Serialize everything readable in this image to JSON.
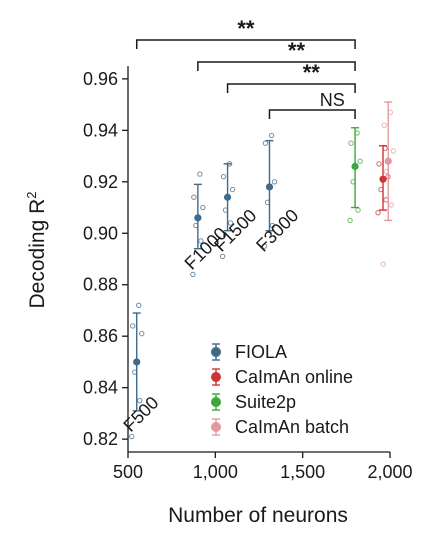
{
  "chart_data": {
    "type": "scatter",
    "xlabel": "Number of neurons",
    "ylabel": "Decoding R",
    "ylabel_superscript": "2",
    "xlim": [
      500,
      2000
    ],
    "ylim": [
      0.815,
      0.965
    ],
    "x_ticks": [
      500,
      1000,
      1500,
      2000
    ],
    "x_tick_labels": [
      "500",
      "1,000",
      "1,500",
      "2,000"
    ],
    "y_ticks": [
      0.82,
      0.84,
      0.86,
      0.88,
      0.9,
      0.92,
      0.94,
      0.96
    ],
    "y_tick_labels": [
      "0.82",
      "0.84",
      "0.86",
      "0.88",
      "0.90",
      "0.92",
      "0.94",
      "0.96"
    ],
    "grid": false,
    "legend_position": "bottom-right",
    "series": [
      {
        "name": "FIOLA",
        "color": "#3f6a8a",
        "points": [
          {
            "label": "F500",
            "x": 550,
            "mean": 0.85,
            "err_low": 0.831,
            "err_high": 0.869,
            "samples": [
              0.821,
              0.835,
              0.846,
              0.861,
              0.864,
              0.872
            ]
          },
          {
            "label": "F1000",
            "x": 900,
            "mean": 0.906,
            "err_low": 0.894,
            "err_high": 0.919,
            "samples": [
              0.884,
              0.897,
              0.903,
              0.91,
              0.914,
              0.923
            ]
          },
          {
            "label": "F1500",
            "x": 1070,
            "mean": 0.914,
            "err_low": 0.901,
            "err_high": 0.927,
            "samples": [
              0.891,
              0.904,
              0.909,
              0.917,
              0.922,
              0.927
            ]
          },
          {
            "label": "F3000",
            "x": 1310,
            "mean": 0.918,
            "err_low": 0.901,
            "err_high": 0.936,
            "samples": [
              0.895,
              0.903,
              0.912,
              0.92,
              0.935,
              0.938
            ]
          }
        ]
      },
      {
        "name": "CaImAn online",
        "color": "#d13438",
        "points": [
          {
            "x": 1960,
            "mean": 0.921,
            "err_low": 0.909,
            "err_high": 0.934,
            "samples": [
              0.908,
              0.913,
              0.917,
              0.922,
              0.927,
              0.933
            ]
          }
        ]
      },
      {
        "name": "Suite2p",
        "color": "#3aa83a",
        "points": [
          {
            "x": 1800,
            "mean": 0.926,
            "err_low": 0.91,
            "err_high": 0.941,
            "samples": [
              0.905,
              0.909,
              0.92,
              0.928,
              0.935,
              0.939
            ]
          }
        ]
      },
      {
        "name": "CaImAn batch",
        "color": "#e3999e",
        "points": [
          {
            "x": 1990,
            "mean": 0.928,
            "err_low": 0.905,
            "err_high": 0.951,
            "samples": [
              0.888,
              0.911,
              0.924,
              0.932,
              0.942,
              0.947
            ]
          }
        ]
      }
    ],
    "significance": [
      {
        "label": "**",
        "x_from": 550,
        "x_to": 1800
      },
      {
        "label": "**",
        "x_from": 900,
        "x_to": 1800
      },
      {
        "label": "**",
        "x_from": 1070,
        "x_to": 1800
      },
      {
        "label": "NS",
        "x_from": 1310,
        "x_to": 1800
      }
    ],
    "legend_entries": [
      "FIOLA",
      "CaImAn online",
      "Suite2p",
      "CaImAn batch"
    ]
  }
}
